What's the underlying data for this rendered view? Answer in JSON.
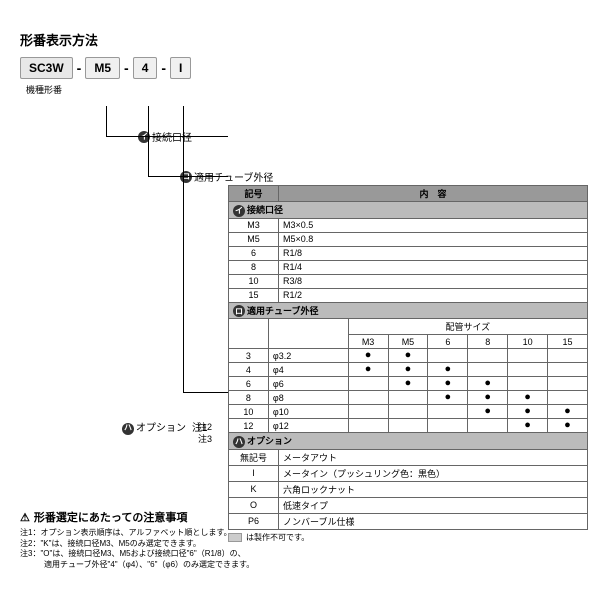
{
  "title": "形番表示方法",
  "model": {
    "base": "SC3W",
    "p1": "M5",
    "p2": "4",
    "p3": "I",
    "base_label": "機種形番"
  },
  "connectors": {
    "i": {
      "badge": "イ",
      "label": "接続口径"
    },
    "ro": {
      "badge": "ロ",
      "label": "適用チューブ外径"
    },
    "ha": {
      "badge": "ハ",
      "label": "オプション",
      "note1": "注1",
      "note2": "注2",
      "note3": "注3"
    }
  },
  "table1": {
    "hdr_code": "記号",
    "hdr_content": "内　容",
    "section": "接続口径",
    "section_badge": "イ",
    "rows": [
      [
        "M3",
        "M3×0.5"
      ],
      [
        "M5",
        "M5×0.8"
      ],
      [
        "6",
        "R1/8"
      ],
      [
        "8",
        "R1/4"
      ],
      [
        "10",
        "R3/8"
      ],
      [
        "15",
        "R1/2"
      ]
    ]
  },
  "table2": {
    "section": "適用チューブ外径",
    "section_badge": "ロ",
    "sizehdr": "配管サイズ",
    "sizes": [
      "M3",
      "M5",
      "6",
      "8",
      "10",
      "15"
    ],
    "rows": [
      {
        "code": "3",
        "val": "φ3.2",
        "dots": [
          1,
          1,
          0,
          0,
          0,
          0
        ]
      },
      {
        "code": "4",
        "val": "φ4",
        "dots": [
          1,
          1,
          1,
          0,
          0,
          0
        ]
      },
      {
        "code": "6",
        "val": "φ6",
        "dots": [
          0,
          1,
          1,
          1,
          0,
          0
        ]
      },
      {
        "code": "8",
        "val": "φ8",
        "dots": [
          0,
          0,
          1,
          1,
          1,
          0
        ]
      },
      {
        "code": "10",
        "val": "φ10",
        "dots": [
          0,
          0,
          0,
          1,
          1,
          1
        ]
      },
      {
        "code": "12",
        "val": "φ12",
        "dots": [
          0,
          0,
          0,
          0,
          1,
          1
        ]
      }
    ]
  },
  "table3": {
    "section": "オプション",
    "section_badge": "ハ",
    "rows": [
      [
        "無記号",
        "メータアウト"
      ],
      [
        "I",
        "メータイン（プッシュリング色：黒色）"
      ],
      [
        "K",
        "六角ロックナット"
      ],
      [
        "O",
        "低速タイプ"
      ],
      [
        "P6",
        "ノンバーブル仕様"
      ]
    ],
    "legend": "は製作不可です。"
  },
  "notes": {
    "title": "形番選定にあたっての注意事項",
    "lines": [
      "注1：オプション表示順序は、アルファベット順とします。",
      "注2：\"K\"は、接続口径M3、M5のみ選定できます。",
      "注3：\"O\"は、接続口径M3、M5および接続口径\"6\"（R1/8）の、",
      "　　　適用チューブ外径\"4\"（φ4）、\"6\"（φ6）のみ選定できます。"
    ]
  }
}
